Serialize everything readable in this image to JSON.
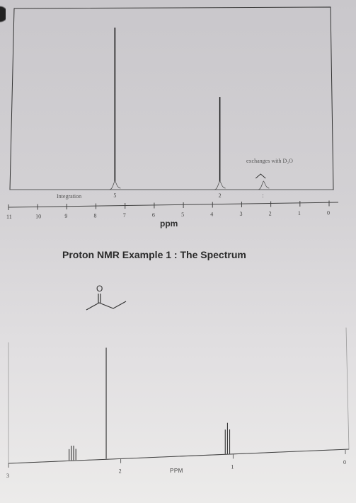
{
  "title": "Proton NMR Example 1 : The Spectrum",
  "chart_data": [
    {
      "type": "line",
      "xlabel": "ppm",
      "x_reversed": true,
      "xlim": [
        11,
        0
      ],
      "x_ticks": [
        "11",
        "10",
        "9",
        "8",
        "7",
        "6",
        "5",
        "4",
        "3",
        "2",
        "1",
        "0"
      ],
      "integration_label": "Integration",
      "integration_values": [
        {
          "x": 7.3,
          "label": "5"
        },
        {
          "x": 3.7,
          "label": "2"
        },
        {
          "x": 2.2,
          "label": ":"
        }
      ],
      "annotation": "exchanges with D₂O",
      "annotation_x": 2.3,
      "peaks": [
        {
          "x": 7.3,
          "height": 1.0
        },
        {
          "x": 3.7,
          "height": 0.55
        },
        {
          "x": 2.3,
          "height": 0.05
        }
      ]
    },
    {
      "type": "line",
      "xlabel": "PPM",
      "x_reversed": true,
      "xlim": [
        3,
        0
      ],
      "x_ticks": [
        "3",
        "2",
        "1",
        "0"
      ],
      "peaks": [
        {
          "x": 2.46,
          "height": 0.1
        },
        {
          "x": 2.44,
          "height": 0.13
        },
        {
          "x": 2.42,
          "height": 0.13
        },
        {
          "x": 2.4,
          "height": 0.1
        },
        {
          "x": 2.13,
          "height": 1.0
        },
        {
          "x": 1.07,
          "height": 0.22
        },
        {
          "x": 1.05,
          "height": 0.28
        },
        {
          "x": 1.03,
          "height": 0.22
        }
      ]
    }
  ],
  "molecule": {
    "name": "butanone structure",
    "atom_label": "O"
  }
}
